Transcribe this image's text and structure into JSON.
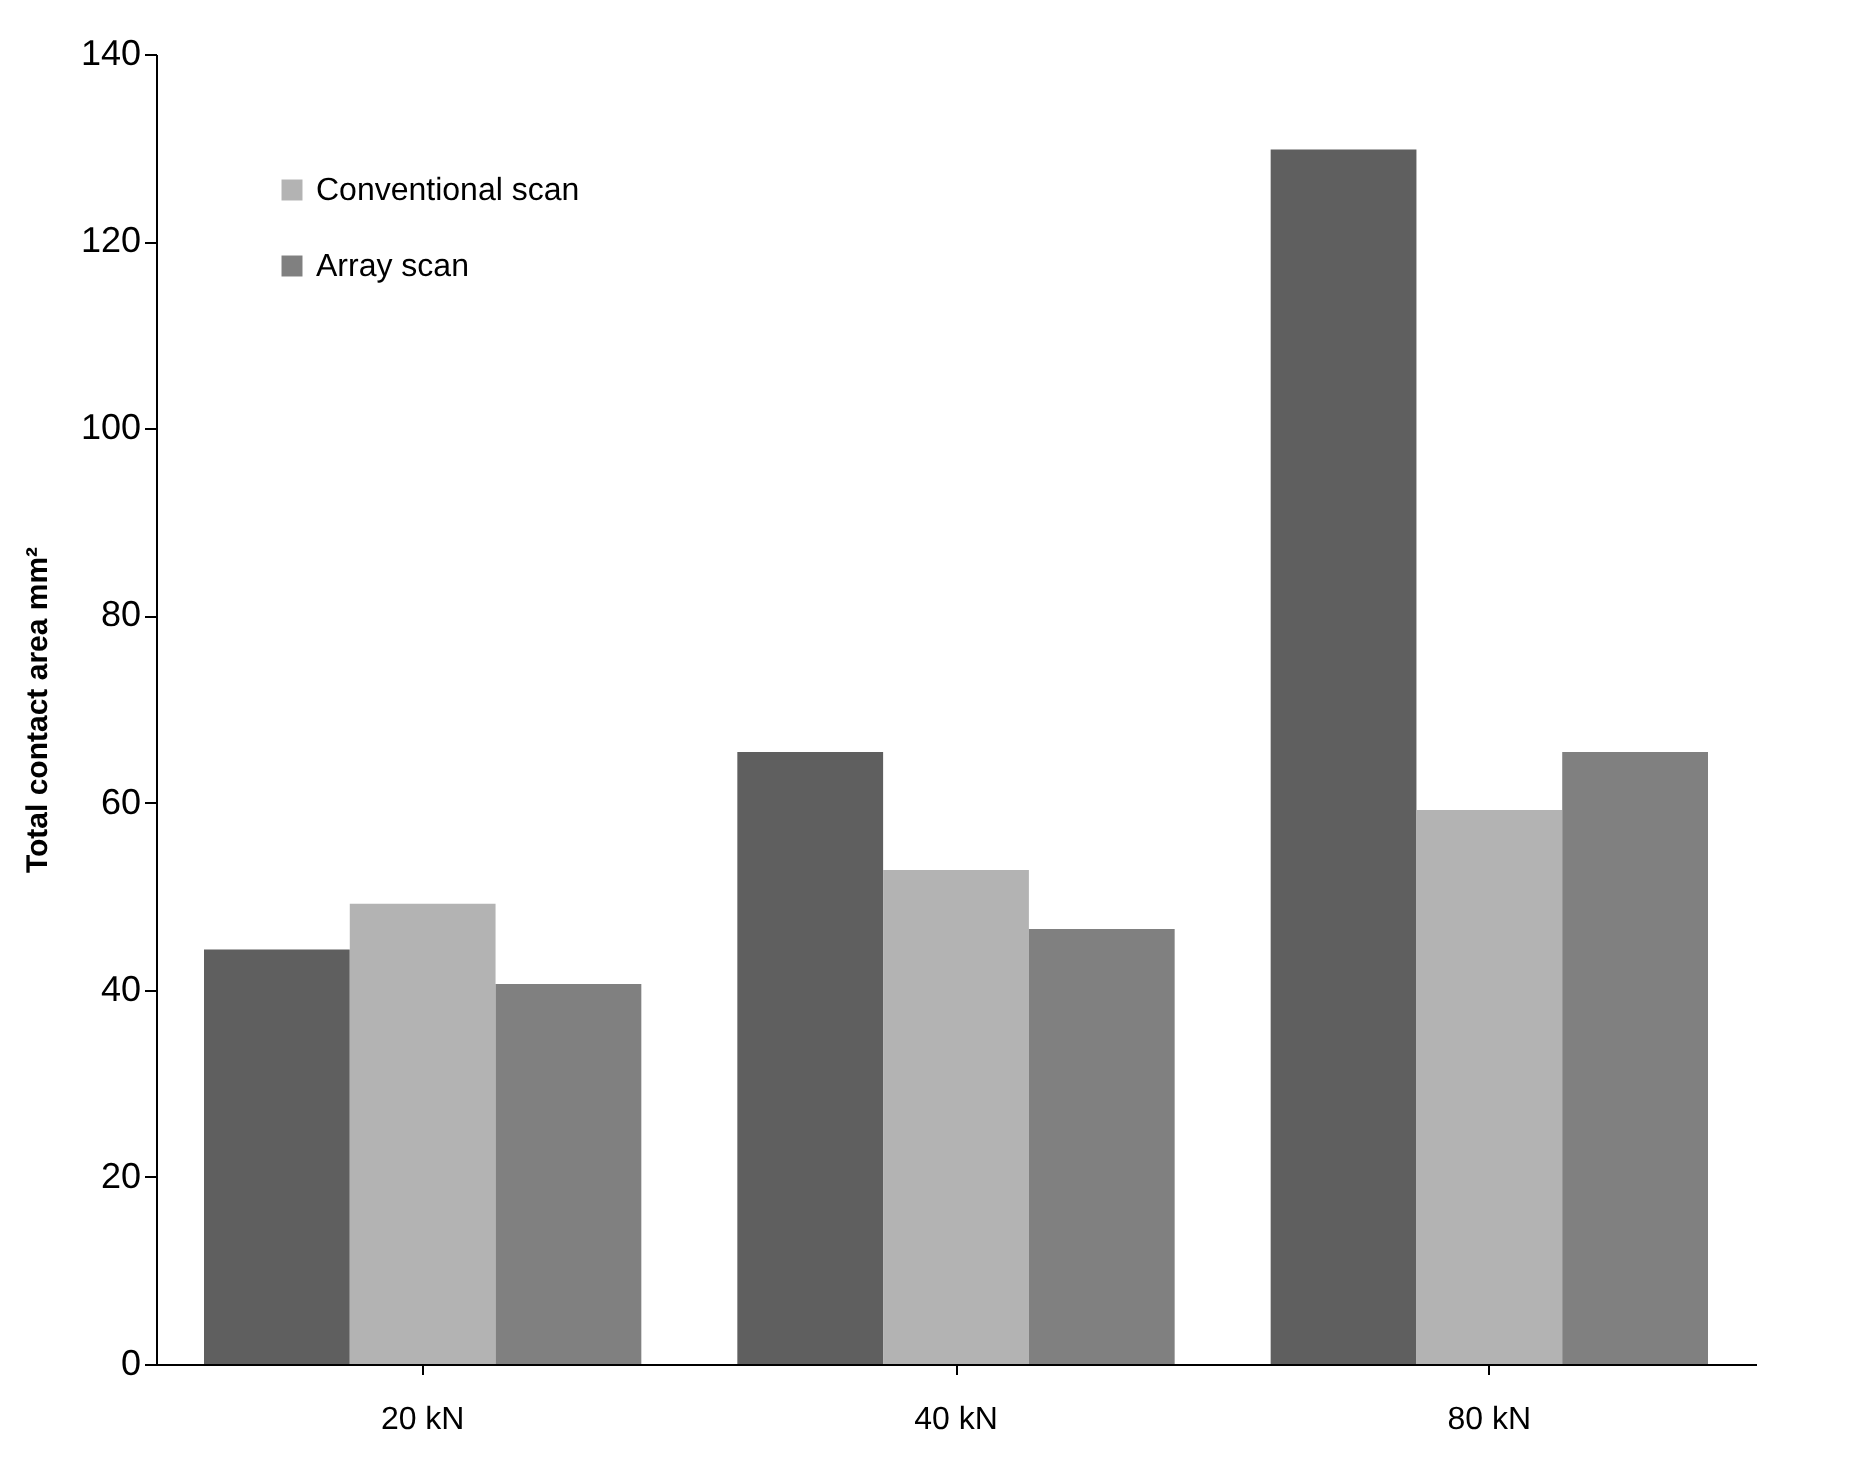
{
  "chart_data": {
    "type": "bar",
    "ylabel": "Total contact area mm²",
    "categories": [
      "20 kN",
      "40 kN",
      "80 kN"
    ],
    "series": [
      {
        "color": "#5f5f5f",
        "values": [
          44.3,
          65.4,
          129.8
        ]
      },
      {
        "name": "Conventional scan",
        "color": "#b3b3b3",
        "values": [
          49.2,
          52.8,
          59.2
        ]
      },
      {
        "name": "Array scan",
        "color": "#808080",
        "values": [
          40.6,
          46.5,
          65.4
        ]
      }
    ],
    "ylim": [
      0,
      140
    ],
    "yticks": [
      0,
      20,
      40,
      60,
      80,
      100,
      120,
      140
    ],
    "grid": false,
    "legend": "top left"
  }
}
